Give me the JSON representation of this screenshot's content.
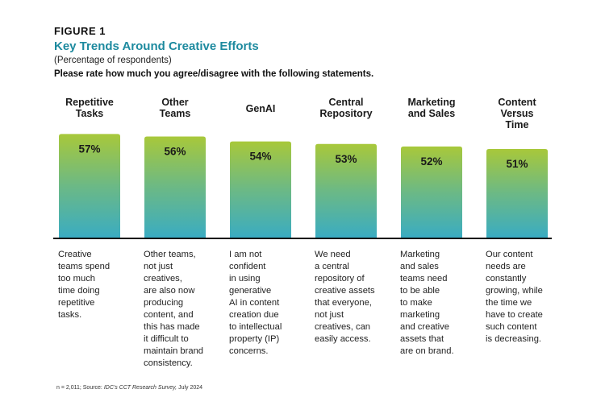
{
  "figure_label": "FIGURE 1",
  "title": "Key Trends Around Creative Efforts",
  "subtitle": "(Percentage of respondents)",
  "question": "Please rate how much you agree/disagree with the following statements.",
  "footnote": {
    "prefix": "n = 2,011; Source: ",
    "source": "IDC's CCT Research Survey,",
    "date": " July 2024"
  },
  "colors": {
    "title": "#1d8a9f",
    "bar_top": "#a8c83a",
    "bar_mid": "#6cb985",
    "bar_bottom": "#3aacc2",
    "baseline": "#111111"
  },
  "chart_data": {
    "type": "bar",
    "title": "Key Trends Around Creative Efforts",
    "subtitle": "(Percentage of respondents)",
    "xlabel": "",
    "ylabel": "Percentage of respondents",
    "ylim": [
      0,
      57
    ],
    "grid": false,
    "legend": "none",
    "unit": "%",
    "categories": [
      [
        "Repetitive",
        "Tasks"
      ],
      [
        "Other",
        "Teams"
      ],
      [
        "GenAI"
      ],
      [
        "Central",
        "Repository"
      ],
      [
        "Marketing",
        "and Sales"
      ],
      [
        "Content",
        "Versus",
        "Time"
      ]
    ],
    "values": [
      57,
      56,
      54,
      53,
      52,
      51
    ],
    "value_labels": [
      "57%",
      "56%",
      "54%",
      "53%",
      "52%",
      "51%"
    ],
    "descriptions": [
      [
        "Creative",
        "teams spend",
        "too much",
        "time doing",
        "repetitive",
        "tasks."
      ],
      [
        "Other teams,",
        "not just",
        "creatives,",
        "are also now",
        "producing",
        "content, and",
        "this has made",
        "it difficult to",
        "maintain brand",
        "consistency."
      ],
      [
        "I am not",
        "confident",
        "in using",
        "generative",
        "AI in content",
        "creation due",
        "to intellectual",
        "property (IP)",
        "concerns."
      ],
      [
        "We need",
        "a central",
        "repository of",
        "creative assets",
        "that everyone,",
        "not just",
        "creatives, can",
        "easily access."
      ],
      [
        "Marketing",
        "and sales",
        "teams need",
        "to be able",
        "to make",
        "marketing",
        "and creative",
        "assets that",
        "are on brand."
      ],
      [
        "Our content",
        "needs are",
        "constantly",
        "growing, while",
        "the time we",
        "have to create",
        "such content",
        "is decreasing."
      ]
    ]
  }
}
